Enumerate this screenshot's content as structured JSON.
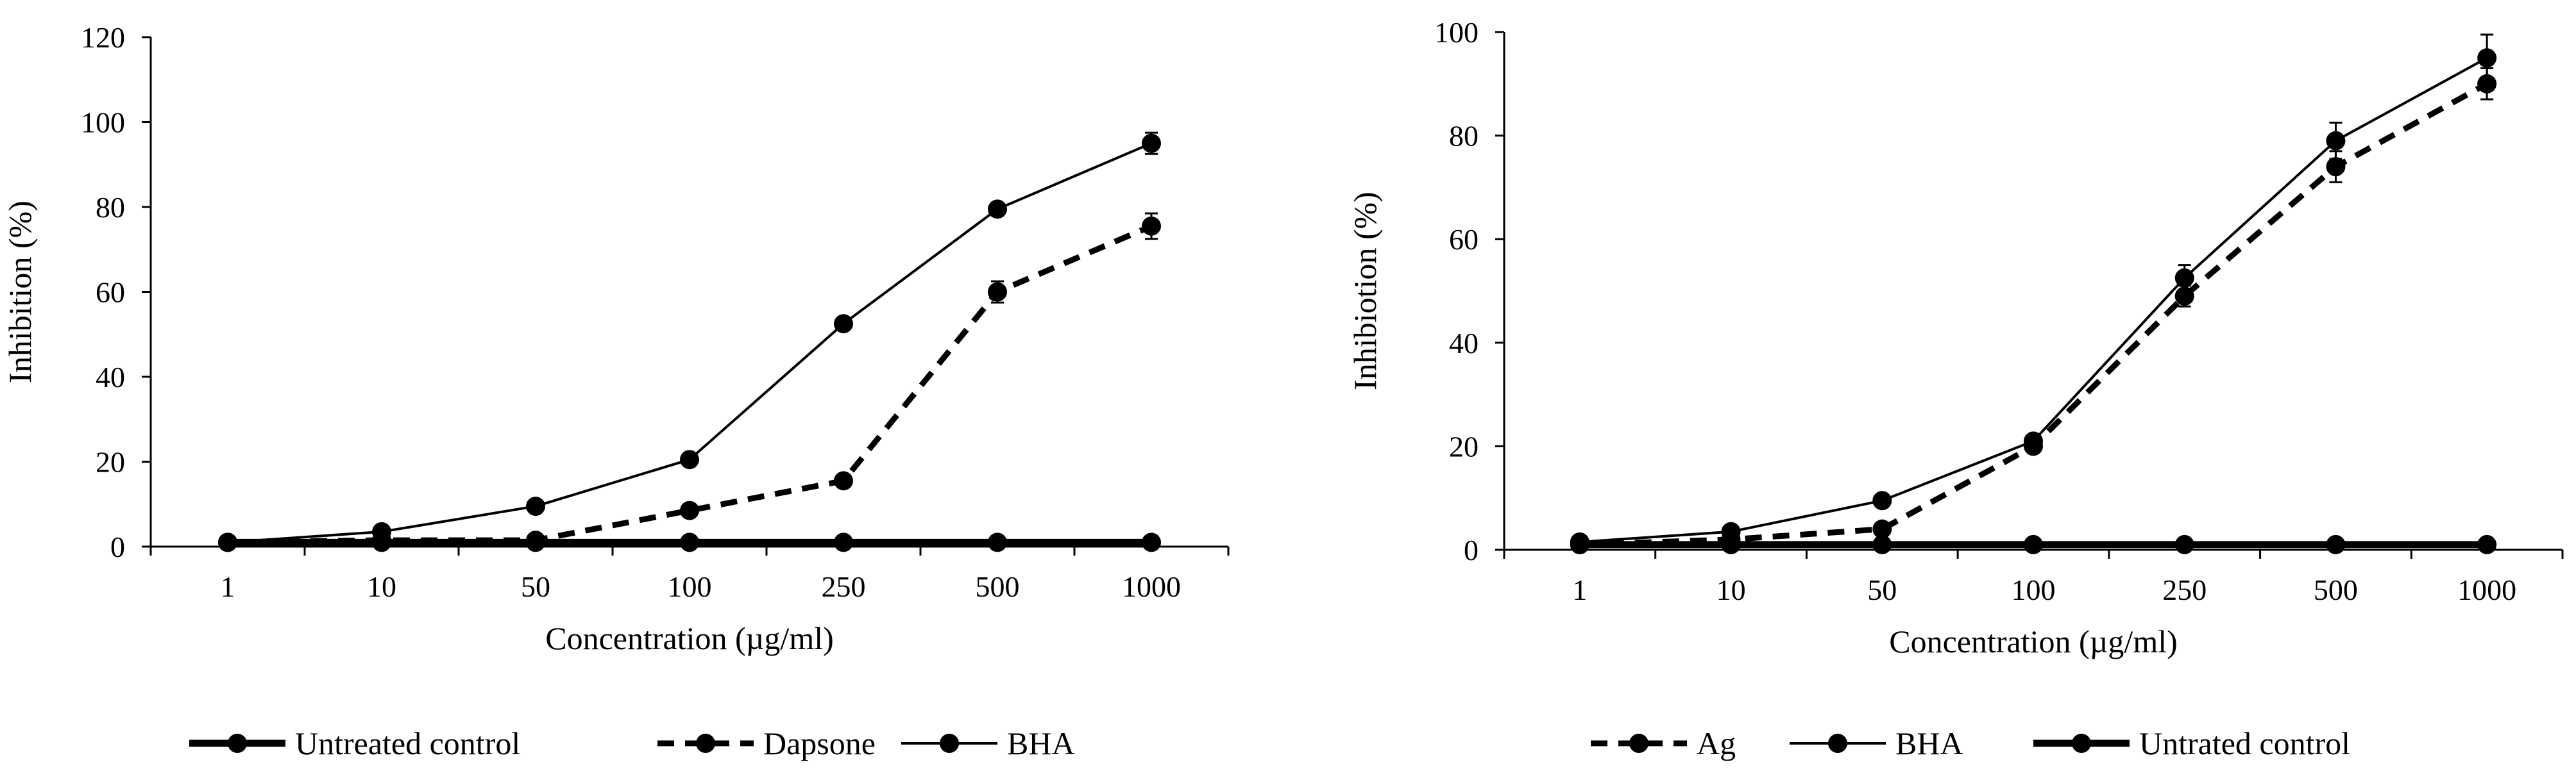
{
  "chart_data": [
    {
      "type": "line",
      "categories": [
        "1",
        "10",
        "50",
        "100",
        "250",
        "500",
        "1000"
      ],
      "xlabel": "Concentration (µg/ml)",
      "ylabel": "Inhibition (%)",
      "ylim": [
        0,
        120
      ],
      "yticks": [
        0,
        20,
        40,
        60,
        80,
        100,
        120
      ],
      "grid": false,
      "legend_position": "bottom",
      "series": [
        {
          "name": "Untreated control",
          "style": "thick-solid",
          "values": [
            1,
            1,
            1,
            1,
            1,
            1,
            1
          ],
          "errors": [
            0,
            0,
            0,
            0,
            0,
            0,
            0
          ]
        },
        {
          "name": "Dapsone",
          "style": "dashed",
          "values": [
            1,
            1.5,
            1.5,
            8.5,
            15.5,
            60,
            75.5
          ],
          "errors": [
            0,
            0,
            0,
            0,
            0,
            2.5,
            3
          ]
        },
        {
          "name": "BHA",
          "style": "thin-solid",
          "values": [
            1,
            3.5,
            9.5,
            20.5,
            52.5,
            79.5,
            95
          ],
          "errors": [
            0,
            0,
            0,
            0,
            0,
            1.5,
            2.5
          ]
        }
      ]
    },
    {
      "type": "line",
      "categories": [
        "1",
        "10",
        "50",
        "100",
        "250",
        "500",
        "1000"
      ],
      "xlabel": "Concentration (µg/ml)",
      "ylabel": "Inhibiotion (%)",
      "ylim": [
        0,
        100
      ],
      "yticks": [
        0,
        20,
        40,
        60,
        80,
        100
      ],
      "grid": false,
      "legend_position": "bottom",
      "series": [
        {
          "name": "Ag",
          "style": "dashed",
          "values": [
            1,
            2,
            4,
            20,
            49,
            74,
            90
          ],
          "errors": [
            0,
            0,
            0,
            0,
            2,
            3,
            3
          ]
        },
        {
          "name": "BHA",
          "style": "thin-solid",
          "values": [
            1.5,
            3.5,
            9.5,
            21,
            52.5,
            79,
            95
          ],
          "errors": [
            0,
            0,
            0,
            0,
            2.5,
            3.5,
            4.5
          ]
        },
        {
          "name": "Untrated control",
          "style": "thick-solid",
          "values": [
            1,
            1,
            1,
            1,
            1,
            1,
            1
          ],
          "errors": [
            0,
            0,
            0,
            0,
            0,
            0,
            0
          ]
        }
      ]
    }
  ]
}
